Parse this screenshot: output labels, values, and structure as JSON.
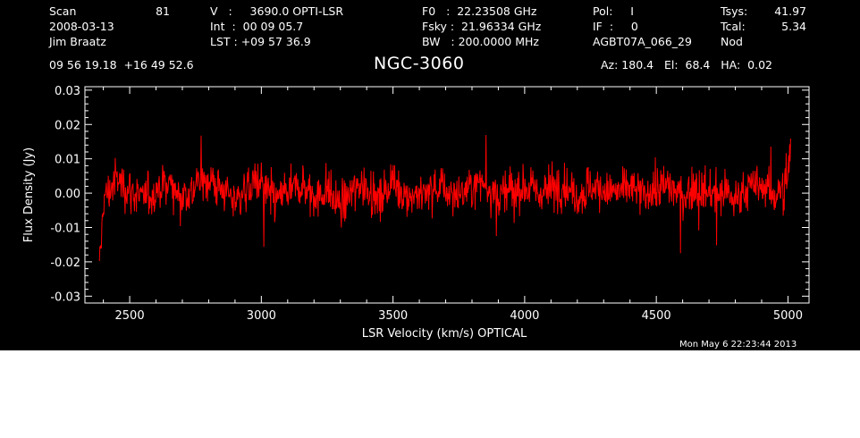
{
  "header": {
    "col1": {
      "line1_label": "Scan",
      "line1_value": "81",
      "line2": "2008-03-13",
      "line3": "Jim Braatz"
    },
    "col2": {
      "line1": "V   :     3690.0 OPTI-LSR",
      "line2": "Int  :  00 09 05.7",
      "line3": "LST : +09 57 36.9"
    },
    "col3": {
      "line1": "F0   :  22.23508 GHz",
      "line2": "Fsky :  21.96334 GHz",
      "line3": "BW   : 200.0000 MHz"
    },
    "col4": {
      "line1": "Pol:     I",
      "line2": "IF  :     0",
      "line3": "AGBT07A_066_29"
    },
    "col5": {
      "line1_label": "Tsys:",
      "line1_value": "41.97",
      "line2_label": "Tcal:",
      "line2_value": "5.34",
      "line3": "Nod"
    },
    "coords": "09 56 19.18  +16 49 52.6",
    "source": "NGC-3060",
    "pointing": "Az: 180.4   El:  68.4   HA:  0.02"
  },
  "timestamp": "Mon May  6 22:23:44 2013",
  "chart_data": {
    "type": "line",
    "title": "NGC-3060",
    "xlabel": "LSR Velocity (km/s) OPTICAL",
    "ylabel": "Flux Density (Jy)",
    "xlim": [
      2330,
      5080
    ],
    "ylim": [
      -0.032,
      0.031
    ],
    "x_ticks": [
      2500,
      3000,
      3500,
      4000,
      4500,
      5000
    ],
    "y_ticks": [
      -0.03,
      -0.02,
      -0.01,
      0.0,
      0.01,
      0.02,
      0.03
    ],
    "y_tick_labels": [
      "-0.03",
      "-0.02",
      "-0.01",
      "0.00",
      "0.01",
      "0.02",
      "0.03"
    ],
    "series": [
      {
        "color": "#ff0000",
        "x": [
          2385,
          2400,
          2450,
          2500,
          2550,
          2600,
          2650,
          2700,
          2750,
          2800,
          2850,
          2900,
          2950,
          3000,
          3050,
          3100,
          3150,
          3200,
          3250,
          3300,
          3350,
          3400,
          3450,
          3500,
          3550,
          3600,
          3650,
          3700,
          3750,
          3800,
          3850,
          3900,
          3950,
          4000,
          4050,
          4100,
          4150,
          4200,
          4250,
          4300,
          4350,
          4400,
          4450,
          4500,
          4550,
          4600,
          4650,
          4700,
          4750,
          4800,
          4850,
          4900,
          4950,
          5000,
          5010
        ],
        "y": [
          -0.024,
          -0.002,
          0.004,
          0.001,
          -0.002,
          0.001,
          0.003,
          -0.001,
          0.002,
          0.004,
          0.001,
          -0.002,
          0.002,
          0.003,
          -0.002,
          0.0,
          0.002,
          -0.001,
          0.001,
          -0.004,
          0.001,
          0.002,
          -0.002,
          0.003,
          0.0,
          -0.001,
          0.002,
          0.001,
          -0.001,
          0.002,
          0.003,
          -0.001,
          0.001,
          0.002,
          0.0,
          0.001,
          0.003,
          -0.001,
          0.002,
          0.001,
          0.0,
          0.002,
          -0.001,
          0.001,
          0.002,
          -0.001,
          0.002,
          0.0,
          0.001,
          -0.002,
          0.001,
          0.002,
          -0.001,
          0.005,
          0.012
        ]
      }
    ]
  }
}
